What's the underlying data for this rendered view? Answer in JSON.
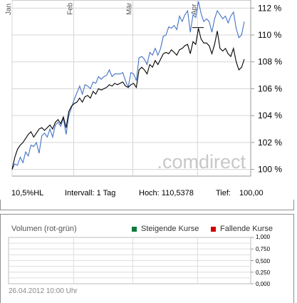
{
  "chart_data": [
    {
      "type": "line",
      "x_labels": [
        "Jan",
        "Feb",
        "Mär",
        "Apr"
      ],
      "yticks": [
        "100 %",
        "102 %",
        "104 %",
        "106 %",
        "108 %",
        "110 %",
        "112 %"
      ],
      "ylim": [
        99.5,
        112.6
      ],
      "grid": true,
      "watermark": ".comdirect",
      "series": [
        {
          "color": "#4472c4",
          "values": [
            100.0,
            100.4,
            100.3,
            100.9,
            100.5,
            101.3,
            101.0,
            101.8,
            101.7,
            102.0,
            101.2,
            102.5,
            102.7,
            102.4,
            103.0,
            102.4,
            103.3,
            103.5,
            103.2,
            103.8,
            102.6,
            104.0,
            104.6,
            105.2,
            105.7,
            106.2,
            105.6,
            106.3,
            106.2,
            106.0,
            106.5,
            106.4,
            106.9,
            106.7,
            106.9,
            107.0,
            107.4,
            106.9,
            107.1,
            107.1,
            107.1,
            107.2,
            106.6,
            106.1,
            107.2,
            107.1,
            106.6,
            108.3,
            108.4,
            108.2,
            107.8,
            108.7,
            108.5,
            109.0,
            108.5,
            109.0,
            109.9,
            110.0,
            110.6,
            110.5,
            110.7,
            110.4,
            111.4,
            111.0,
            111.5,
            111.8,
            110.2,
            111.5,
            111.3,
            112.5,
            111.6,
            111.0,
            111.2,
            111.0,
            110.2,
            111.2,
            111.8,
            111.5,
            111.2,
            111.4,
            110.9,
            111.4,
            111.7,
            110.5,
            109.8,
            110.0,
            111.0
          ]
        },
        {
          "color": "#000000",
          "values": [
            100.0,
            100.9,
            101.5,
            101.8,
            102.0,
            102.3,
            102.6,
            102.8,
            102.4,
            102.7,
            103.0,
            103.1,
            102.9,
            103.1,
            103.3,
            103.0,
            103.5,
            103.7,
            103.4,
            103.9,
            103.1,
            104.3,
            104.7,
            104.9,
            105.0,
            105.3,
            105.0,
            105.4,
            105.5,
            105.3,
            105.8,
            105.6,
            106.0,
            105.9,
            106.0,
            106.1,
            106.3,
            106.2,
            106.4,
            106.3,
            106.4,
            106.5,
            106.2,
            106.1,
            106.3,
            106.4,
            106.1,
            107.4,
            107.6,
            107.4,
            107.1,
            107.8,
            107.6,
            108.1,
            107.8,
            108.2,
            108.6,
            108.7,
            108.6,
            108.9,
            108.7,
            108.5,
            108.9,
            109.0,
            109.2,
            109.3,
            108.6,
            109.5,
            109.3,
            110.5,
            109.7,
            109.4,
            109.4,
            109.2,
            108.6,
            109.3,
            110.3,
            109.0,
            108.8,
            109.0,
            108.6,
            108.4,
            109.0,
            108.0,
            107.4,
            107.6,
            108.2
          ]
        }
      ]
    },
    {
      "type": "bar",
      "title": "Volumen (rot-grün)",
      "legend": [
        {
          "label": "Steigende Kurse",
          "color": "#0b7a3a"
        },
        {
          "label": "Fallende Kurse",
          "color": "#cc0000"
        }
      ],
      "yticks": [
        "1,000",
        "0,750",
        "0,500",
        "0,250",
        "0,000"
      ],
      "ylim": [
        0,
        1
      ],
      "grid": true,
      "values": []
    }
  ],
  "info": {
    "name": "10,5%HL",
    "interval": "Intervall: 1 Tag",
    "high": "Hoch: 110,5378",
    "low_label": "Tief:",
    "low_value": "100,00"
  },
  "footer": {
    "timestamp": "26.04.2012 10:00 Uhr"
  }
}
